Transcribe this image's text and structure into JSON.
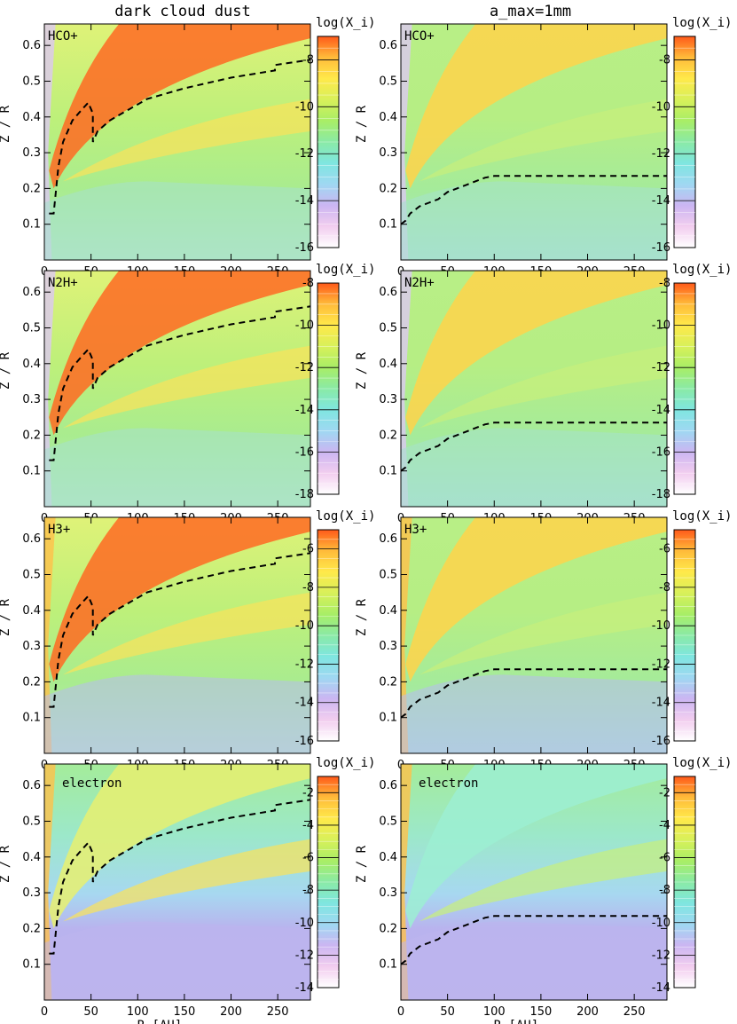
{
  "column_titles": [
    "dark cloud dust",
    "a_max=1mm"
  ],
  "x_axis_label": "R [AU]",
  "y_axis_label": "Z / R",
  "colorbar_title": "log(X_i)",
  "chart_data": [
    {
      "type": "heatmap",
      "row": 0,
      "col": 0,
      "species": "HCO+",
      "xlim": [
        0,
        285
      ],
      "ylim": [
        0,
        0.66
      ],
      "xticks": [
        "0",
        "50",
        "100",
        "150",
        "200",
        "250"
      ],
      "yticks": [
        "0.1",
        "0.2",
        "0.3",
        "0.4",
        "0.5",
        "0.6"
      ],
      "colorbar": {
        "min": -16,
        "max": -7,
        "ticks": [
          "-8",
          "-10",
          "-12",
          "-14",
          "-16"
        ]
      },
      "boundary": "dark",
      "boundary_line": {
        "x": [
          5,
          10,
          15,
          20,
          30,
          40,
          47,
          52,
          52,
          57,
          70,
          90,
          110,
          150,
          200,
          247,
          247,
          285
        ],
        "y": [
          0.13,
          0.13,
          0.26,
          0.33,
          0.39,
          0.42,
          0.44,
          0.41,
          0.33,
          0.36,
          0.39,
          0.42,
          0.45,
          0.48,
          0.51,
          0.53,
          0.545,
          0.56
        ]
      }
    },
    {
      "type": "heatmap",
      "row": 0,
      "col": 1,
      "species": "HCO+",
      "xlim": [
        0,
        285
      ],
      "ylim": [
        0,
        0.66
      ],
      "xticks": [
        "0",
        "50",
        "100",
        "150",
        "200",
        "250"
      ],
      "yticks": [
        "0.1",
        "0.2",
        "0.3",
        "0.4",
        "0.5",
        "0.6"
      ],
      "colorbar": {
        "min": -16,
        "max": -7,
        "ticks": [
          "-8",
          "-10",
          "-12",
          "-14",
          "-16"
        ]
      },
      "boundary": "mm",
      "boundary_line": {
        "x": [
          0,
          5,
          10,
          20,
          30,
          40,
          50,
          60,
          70,
          80,
          90,
          100,
          110,
          285
        ],
        "y": [
          0.1,
          0.11,
          0.13,
          0.15,
          0.16,
          0.17,
          0.19,
          0.2,
          0.21,
          0.22,
          0.23,
          0.235,
          0.235,
          0.235
        ]
      }
    },
    {
      "type": "heatmap",
      "row": 1,
      "col": 0,
      "species": "N2H+",
      "xlim": [
        0,
        285
      ],
      "ylim": [
        0,
        0.66
      ],
      "xticks": [
        "0",
        "50",
        "100",
        "150",
        "200",
        "250"
      ],
      "yticks": [
        "0.1",
        "0.2",
        "0.3",
        "0.4",
        "0.5",
        "0.6"
      ],
      "colorbar": {
        "min": -18,
        "max": -8,
        "ticks": [
          "-8",
          "-10",
          "-12",
          "-14",
          "-16",
          "-18"
        ]
      },
      "boundary": "dark",
      "boundary_line": {
        "x": [
          5,
          10,
          15,
          20,
          30,
          40,
          47,
          52,
          52,
          57,
          70,
          90,
          110,
          150,
          200,
          247,
          247,
          285
        ],
        "y": [
          0.13,
          0.13,
          0.26,
          0.33,
          0.39,
          0.42,
          0.44,
          0.41,
          0.33,
          0.36,
          0.39,
          0.42,
          0.45,
          0.48,
          0.51,
          0.53,
          0.545,
          0.56
        ]
      }
    },
    {
      "type": "heatmap",
      "row": 1,
      "col": 1,
      "species": "N2H+",
      "xlim": [
        0,
        285
      ],
      "ylim": [
        0,
        0.66
      ],
      "xticks": [
        "0",
        "50",
        "100",
        "150",
        "200",
        "250"
      ],
      "yticks": [
        "0.1",
        "0.2",
        "0.3",
        "0.4",
        "0.5",
        "0.6"
      ],
      "colorbar": {
        "min": -18,
        "max": -8,
        "ticks": [
          "-8",
          "-10",
          "-12",
          "-14",
          "-16",
          "-18"
        ]
      },
      "boundary": "mm",
      "boundary_line": {
        "x": [
          0,
          5,
          10,
          20,
          30,
          40,
          50,
          60,
          70,
          80,
          90,
          100,
          110,
          285
        ],
        "y": [
          0.1,
          0.11,
          0.13,
          0.15,
          0.16,
          0.17,
          0.19,
          0.2,
          0.21,
          0.22,
          0.23,
          0.235,
          0.235,
          0.235
        ]
      }
    },
    {
      "type": "heatmap",
      "row": 2,
      "col": 0,
      "species": "H3+",
      "xlim": [
        0,
        285
      ],
      "ylim": [
        0,
        0.66
      ],
      "xticks": [
        "0",
        "50",
        "100",
        "150",
        "200",
        "250"
      ],
      "yticks": [
        "0.1",
        "0.2",
        "0.3",
        "0.4",
        "0.5",
        "0.6"
      ],
      "colorbar": {
        "min": -16,
        "max": -5,
        "ticks": [
          "-6",
          "-8",
          "-10",
          "-12",
          "-14",
          "-16"
        ]
      },
      "boundary": "dark",
      "boundary_line": {
        "x": [
          5,
          10,
          15,
          20,
          30,
          40,
          47,
          52,
          52,
          57,
          70,
          90,
          110,
          150,
          200,
          247,
          247,
          285
        ],
        "y": [
          0.13,
          0.13,
          0.26,
          0.33,
          0.39,
          0.42,
          0.44,
          0.41,
          0.33,
          0.36,
          0.39,
          0.42,
          0.45,
          0.48,
          0.51,
          0.53,
          0.545,
          0.56
        ]
      }
    },
    {
      "type": "heatmap",
      "row": 2,
      "col": 1,
      "species": "H3+",
      "xlim": [
        0,
        285
      ],
      "ylim": [
        0,
        0.66
      ],
      "xticks": [
        "0",
        "50",
        "100",
        "150",
        "200",
        "250"
      ],
      "yticks": [
        "0.1",
        "0.2",
        "0.3",
        "0.4",
        "0.5",
        "0.6"
      ],
      "colorbar": {
        "min": -16,
        "max": -5,
        "ticks": [
          "-6",
          "-8",
          "-10",
          "-12",
          "-14",
          "-16"
        ]
      },
      "boundary": "mm",
      "boundary_line": {
        "x": [
          0,
          5,
          10,
          20,
          30,
          40,
          50,
          60,
          70,
          80,
          90,
          100,
          110,
          285
        ],
        "y": [
          0.1,
          0.11,
          0.13,
          0.15,
          0.16,
          0.17,
          0.19,
          0.2,
          0.21,
          0.22,
          0.23,
          0.235,
          0.235,
          0.235
        ]
      }
    },
    {
      "type": "heatmap",
      "row": 3,
      "col": 0,
      "species": "electron",
      "xlim": [
        0,
        285
      ],
      "ylim": [
        0,
        0.66
      ],
      "xticks": [
        "0",
        "50",
        "100",
        "150",
        "200",
        "250"
      ],
      "yticks": [
        "0.1",
        "0.2",
        "0.3",
        "0.4",
        "0.5",
        "0.6"
      ],
      "colorbar": {
        "min": -14,
        "max": -1,
        "ticks": [
          "-2",
          "-4",
          "-6",
          "-8",
          "-10",
          "-12",
          "-14"
        ]
      },
      "boundary": "dark",
      "boundary_line": {
        "x": [
          5,
          10,
          15,
          20,
          30,
          40,
          47,
          52,
          52,
          57,
          70,
          90,
          110,
          150,
          200,
          247,
          247,
          285
        ],
        "y": [
          0.13,
          0.13,
          0.26,
          0.33,
          0.39,
          0.42,
          0.44,
          0.41,
          0.33,
          0.36,
          0.39,
          0.42,
          0.45,
          0.48,
          0.51,
          0.53,
          0.545,
          0.56
        ]
      }
    },
    {
      "type": "heatmap",
      "row": 3,
      "col": 1,
      "species": "electron",
      "xlim": [
        0,
        285
      ],
      "ylim": [
        0,
        0.66
      ],
      "xticks": [
        "0",
        "50",
        "100",
        "150",
        "200",
        "250"
      ],
      "yticks": [
        "0.1",
        "0.2",
        "0.3",
        "0.4",
        "0.5",
        "0.6"
      ],
      "colorbar": {
        "min": -14,
        "max": -1,
        "ticks": [
          "-2",
          "-4",
          "-6",
          "-8",
          "-10",
          "-12",
          "-14"
        ]
      },
      "boundary": "mm",
      "boundary_line": {
        "x": [
          0,
          5,
          10,
          20,
          30,
          40,
          50,
          60,
          70,
          80,
          90,
          100,
          110,
          285
        ],
        "y": [
          0.1,
          0.11,
          0.13,
          0.15,
          0.16,
          0.17,
          0.19,
          0.2,
          0.21,
          0.22,
          0.23,
          0.235,
          0.235,
          0.235
        ]
      }
    }
  ]
}
